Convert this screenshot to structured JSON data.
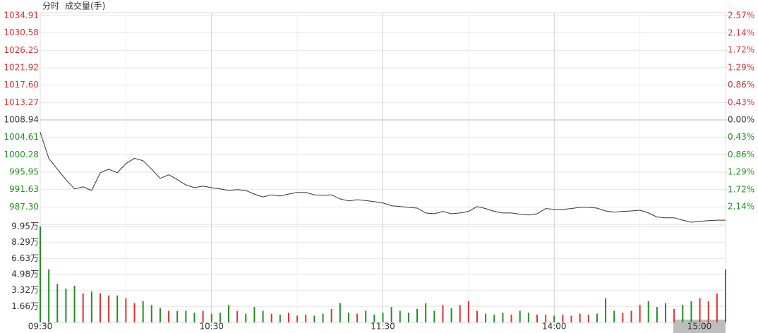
{
  "chart_data": [
    {
      "type": "line",
      "title": "分时",
      "color": "#333333",
      "up_color": "#e03030",
      "down_color": "#209020",
      "flat_color": "#333333",
      "x": [
        0,
        3,
        6,
        9,
        12,
        15,
        18,
        21,
        24,
        27,
        30,
        33,
        36,
        39,
        42,
        45,
        48,
        51,
        54,
        57,
        60,
        63,
        66,
        69,
        72,
        75,
        78,
        81,
        84,
        87,
        90,
        93,
        96,
        99,
        102,
        105,
        108,
        111,
        114,
        117,
        120,
        123,
        126,
        129,
        132,
        135,
        138,
        141,
        144,
        147,
        150,
        153,
        156,
        159,
        162,
        165,
        168,
        171,
        174,
        177,
        180,
        183,
        186,
        189,
        192,
        195,
        198,
        201,
        204,
        207,
        210,
        213,
        216,
        219,
        222,
        225,
        228,
        231,
        234,
        237,
        240
      ],
      "values": [
        1005.87,
        999.4,
        996.7,
        994.1,
        991.8,
        992.3,
        991.4,
        995.8,
        996.7,
        995.8,
        998.1,
        999.4,
        998.8,
        996.7,
        994.4,
        995.3,
        994.1,
        992.8,
        992.1,
        992.5,
        992.1,
        991.8,
        991.4,
        991.6,
        991.4,
        990.5,
        989.8,
        990.3,
        990.0,
        990.5,
        990.9,
        990.9,
        990.3,
        990.2,
        990.3,
        989.3,
        988.8,
        989.1,
        988.9,
        988.6,
        988.3,
        987.6,
        987.4,
        987.2,
        987.0,
        985.8,
        985.6,
        986.2,
        985.6,
        985.8,
        986.2,
        987.4,
        986.9,
        986.2,
        985.8,
        985.8,
        985.5,
        985.3,
        985.6,
        986.9,
        986.7,
        986.7,
        986.9,
        987.2,
        987.2,
        987.0,
        986.3,
        986.0,
        986.2,
        986.3,
        986.5,
        985.8,
        984.8,
        984.6,
        984.6,
        984.0,
        983.5,
        983.7,
        983.9,
        984.0,
        984.0
      ],
      "xlim": [
        0,
        240
      ],
      "xticks": [
        {
          "value": 0,
          "label": "09:30"
        },
        {
          "value": 60,
          "label": "10:30"
        },
        {
          "value": 120,
          "label": "11:30"
        },
        {
          "value": 180,
          "label": "14:00"
        },
        {
          "value": 240,
          "label": "15:00"
        }
      ],
      "ylim": [
        982.97,
        1034.91
      ],
      "yticks": [
        1034.91,
        1030.58,
        1026.25,
        1021.92,
        {
          "value": 1017.6,
          "label": "1017.60"
        },
        1013.27,
        1008.94,
        1004.61,
        1000.28,
        995.95,
        991.63,
        {
          "value": 987.3,
          "label": "987.30"
        }
      ],
      "y2lim": [
        -2.574,
        2.574
      ],
      "y2ticks": [
        {
          "value": 2.57,
          "label": "2.57%"
        },
        {
          "value": 2.14,
          "label": "2.14%"
        },
        {
          "value": 1.72,
          "label": "1.72%"
        },
        {
          "value": 1.29,
          "label": "1.29%"
        },
        {
          "value": 0.86,
          "label": "0.86%"
        },
        {
          "value": 0.43,
          "label": "0.43%"
        },
        {
          "value": 0,
          "label": "0.00%"
        },
        {
          "value": -0.43,
          "label": "0.43%"
        },
        {
          "value": -0.86,
          "label": "0.86%"
        },
        {
          "value": -1.29,
          "label": "1.29%"
        },
        {
          "value": -1.72,
          "label": "1.72%"
        },
        {
          "value": -2.14,
          "label": "2.14%"
        }
      ],
      "grid": true
    },
    {
      "type": "bar",
      "title": "成交量(手)",
      "values": [
        99500,
        55000,
        40000,
        35000,
        38000,
        30000,
        32000,
        30000,
        28000,
        28000,
        25000,
        20000,
        22000,
        18000,
        15000,
        12000,
        12000,
        12000,
        10000,
        12000,
        9000,
        10000,
        18000,
        12000,
        9000,
        16000,
        12000,
        9000,
        8000,
        10000,
        7000,
        8000,
        7000,
        9000,
        14000,
        20000,
        10000,
        9000,
        12000,
        8000,
        10000,
        16000,
        12000,
        10000,
        14000,
        20000,
        12000,
        18000,
        15000,
        18000,
        22000,
        12000,
        9000,
        8000,
        10000,
        8000,
        12000,
        10000,
        8000,
        8000,
        7000,
        8000,
        7000,
        9000,
        8000,
        9000,
        25000,
        12000,
        10000,
        12000,
        18000,
        22000,
        16000,
        20000,
        14000,
        18000,
        22000,
        25000,
        22000,
        30000,
        55000
      ],
      "ylim": [
        0,
        99500
      ],
      "yticks": [
        {
          "value": 99500,
          "label": "9.95万"
        },
        {
          "value": 82900,
          "label": "8.29万"
        },
        {
          "value": 66300,
          "label": "6.63万"
        },
        {
          "value": 49800,
          "label": "4.98万"
        },
        {
          "value": 33200,
          "label": "3.32万"
        },
        {
          "value": 16600,
          "label": "1.66万"
        }
      ],
      "grid": true
    }
  ]
}
